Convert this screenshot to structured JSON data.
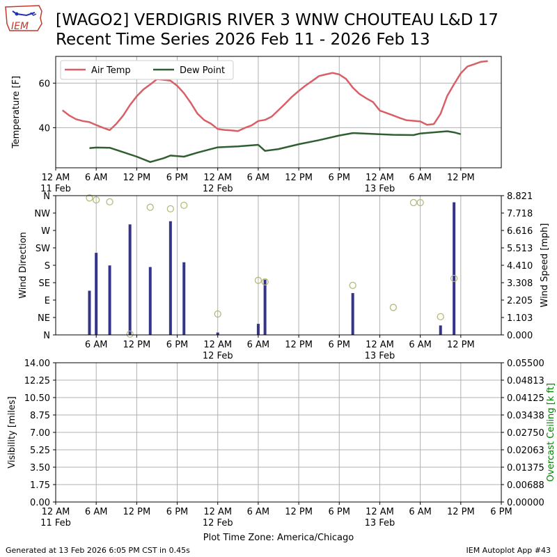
{
  "header": {
    "title_line1": "[WAGO2] VERDIGRIS RIVER 3 WNW CHOUTEAU L&D 17",
    "title_line2": "Recent Time Series 2026 Feb 11 - 2026 Feb 13",
    "logo_text": "IEM"
  },
  "footer": {
    "generated": "Generated at 13 Feb 2026 6:05 PM CST in 0.45s",
    "app": "IEM Autoplot App #43"
  },
  "colors": {
    "air_temp": "#d95f66",
    "dew_point": "#2f5f30",
    "wind_speed_bar": "#34348a",
    "wind_direction_marker": "#b5b97a",
    "ceiling_axis_label": "#008000",
    "grid": "#b0b0b0"
  },
  "chart_data": [
    {
      "type": "line",
      "name": "temperature-panel",
      "ylabel": "Temperature [F]",
      "xlim_hours": [
        0,
        66
      ],
      "ylim": [
        22,
        72
      ],
      "yticks": [
        40,
        60
      ],
      "xticks": [
        {
          "h": 0,
          "label": "12 AM",
          "sub": "11 Feb"
        },
        {
          "h": 6,
          "label": "6 AM",
          "sub": ""
        },
        {
          "h": 12,
          "label": "12 PM",
          "sub": ""
        },
        {
          "h": 18,
          "label": "6 PM",
          "sub": ""
        },
        {
          "h": 24,
          "label": "12 AM",
          "sub": "12 Feb"
        },
        {
          "h": 30,
          "label": "6 AM",
          "sub": ""
        },
        {
          "h": 36,
          "label": "12 PM",
          "sub": ""
        },
        {
          "h": 42,
          "label": "6 PM",
          "sub": ""
        },
        {
          "h": 48,
          "label": "12 AM",
          "sub": "13 Feb"
        },
        {
          "h": 54,
          "label": "6 AM",
          "sub": ""
        },
        {
          "h": 60,
          "label": "12 PM",
          "sub": ""
        }
      ],
      "grid": true,
      "legend": "upper-left",
      "series": [
        {
          "name": "Air Temp",
          "points": [
            [
              1,
              47.8
            ],
            [
              2,
              45.5
            ],
            [
              3,
              43.8
            ],
            [
              4,
              43.0
            ],
            [
              5,
              42.5
            ],
            [
              6,
              41.2
            ],
            [
              7,
              40.0
            ],
            [
              8,
              38.9
            ],
            [
              9,
              41.8
            ],
            [
              10,
              45.5
            ],
            [
              11,
              50.2
            ],
            [
              12,
              54.1
            ],
            [
              13,
              57.2
            ],
            [
              14,
              59.4
            ],
            [
              15,
              61.8
            ],
            [
              16,
              61.5
            ],
            [
              17,
              61.1
            ],
            [
              18,
              58.8
            ],
            [
              19,
              55.5
            ],
            [
              20,
              51.2
            ],
            [
              21,
              46.3
            ],
            [
              22,
              43.4
            ],
            [
              23,
              41.8
            ],
            [
              24,
              39.4
            ],
            [
              25,
              39.0
            ],
            [
              26,
              38.8
            ],
            [
              27,
              38.5
            ],
            [
              28,
              39.9
            ],
            [
              29,
              41.0
            ],
            [
              30,
              43.0
            ],
            [
              31,
              43.5
            ],
            [
              32,
              45.0
            ],
            [
              33,
              47.9
            ],
            [
              34,
              50.8
            ],
            [
              35,
              53.9
            ],
            [
              36,
              56.5
            ],
            [
              37,
              58.9
            ],
            [
              38,
              61.0
            ],
            [
              39,
              63.2
            ],
            [
              40,
              63.9
            ],
            [
              41,
              64.6
            ],
            [
              42,
              63.9
            ],
            [
              43,
              61.9
            ],
            [
              44,
              58.0
            ],
            [
              45,
              55.1
            ],
            [
              46,
              53.2
            ],
            [
              47,
              51.5
            ],
            [
              48,
              47.7
            ],
            [
              49,
              46.6
            ],
            [
              50,
              45.5
            ],
            [
              51,
              44.3
            ],
            [
              52,
              43.3
            ],
            [
              53,
              43.1
            ],
            [
              54,
              42.8
            ],
            [
              55,
              41.3
            ],
            [
              56,
              41.6
            ],
            [
              57,
              46.2
            ],
            [
              58,
              54.3
            ],
            [
              59,
              59.5
            ],
            [
              60,
              64.4
            ],
            [
              61,
              67.5
            ],
            [
              62,
              68.5
            ],
            [
              63,
              69.6
            ],
            [
              64,
              69.9
            ]
          ]
        },
        {
          "name": "Dew Point",
          "points": [
            [
              5,
              30.8
            ],
            [
              6,
              31.1
            ],
            [
              8,
              31.0
            ],
            [
              10,
              29.0
            ],
            [
              12,
              27.0
            ],
            [
              14,
              24.6
            ],
            [
              16,
              26.3
            ],
            [
              17,
              27.5
            ],
            [
              19,
              27.0
            ],
            [
              21,
              28.8
            ],
            [
              24,
              31.2
            ],
            [
              27,
              31.6
            ],
            [
              30,
              32.3
            ],
            [
              31,
              29.6
            ],
            [
              33,
              30.4
            ],
            [
              36,
              32.6
            ],
            [
              39,
              34.4
            ],
            [
              42,
              36.5
            ],
            [
              44,
              37.6
            ],
            [
              47,
              37.2
            ],
            [
              50,
              36.8
            ],
            [
              53,
              36.7
            ],
            [
              54,
              37.4
            ],
            [
              58,
              38.4
            ],
            [
              59,
              37.9
            ],
            [
              60,
              37.1
            ]
          ]
        }
      ]
    },
    {
      "type": "bar",
      "name": "wind-panel",
      "ylabel": "Wind Direction",
      "y2label": "Wind Speed [mph]",
      "xlim_hours": [
        0,
        66
      ],
      "direction_ylim": [
        0,
        360
      ],
      "speed_ylim": [
        0,
        8.821
      ],
      "direction_ticks": [
        "N",
        "NE",
        "E",
        "SE",
        "S",
        "SW",
        "W",
        "NW",
        "N"
      ],
      "speed_ticks": [
        "0.000",
        "1.103",
        "2.205",
        "3.308",
        "4.410",
        "5.513",
        "6.616",
        "7.718",
        "8.821"
      ],
      "xticks": [
        {
          "h": 6,
          "label": "6 AM",
          "sub": ""
        },
        {
          "h": 12,
          "label": "12 PM",
          "sub": ""
        },
        {
          "h": 18,
          "label": "6 PM",
          "sub": ""
        },
        {
          "h": 24,
          "label": "12 AM",
          "sub": "12 Feb"
        },
        {
          "h": 30,
          "label": "6 AM",
          "sub": ""
        },
        {
          "h": 36,
          "label": "12 PM",
          "sub": ""
        },
        {
          "h": 42,
          "label": "6 PM",
          "sub": ""
        },
        {
          "h": 48,
          "label": "12 AM",
          "sub": "13 Feb"
        },
        {
          "h": 54,
          "label": "6 AM",
          "sub": ""
        },
        {
          "h": 60,
          "label": "12 PM",
          "sub": ""
        }
      ],
      "grid": true,
      "wind_speed": [
        [
          5,
          2.8
        ],
        [
          6,
          5.2
        ],
        [
          8,
          4.4
        ],
        [
          11,
          7.0
        ],
        [
          14,
          4.3
        ],
        [
          17,
          7.2
        ],
        [
          19,
          4.6
        ],
        [
          24,
          0.15
        ],
        [
          30,
          0.7
        ],
        [
          31,
          3.5
        ],
        [
          44,
          2.65
        ],
        [
          57,
          0.6
        ],
        [
          59,
          8.4
        ]
      ],
      "wind_direction": [
        [
          5,
          354
        ],
        [
          6,
          349
        ],
        [
          8,
          344
        ],
        [
          11,
          2
        ],
        [
          14,
          330
        ],
        [
          17,
          326
        ],
        [
          19,
          335
        ],
        [
          24,
          54
        ],
        [
          30,
          141
        ],
        [
          31,
          137
        ],
        [
          44,
          128
        ],
        [
          50,
          71
        ],
        [
          53,
          342
        ],
        [
          54,
          342
        ],
        [
          57,
          47
        ],
        [
          59,
          146
        ]
      ]
    },
    {
      "type": "line",
      "name": "visibility-panel",
      "ylabel": "Visibility [miles]",
      "y2label": "Overcast Ceiling [k ft]",
      "xlim_hours": [
        0,
        66
      ],
      "ylim": [
        0,
        14
      ],
      "y2lim": [
        0,
        0.055
      ],
      "yticks": [
        "0.00",
        "1.75",
        "3.50",
        "5.25",
        "7.00",
        "8.75",
        "10.50",
        "12.25",
        "14.00"
      ],
      "y2ticks": [
        "0.00000",
        "0.00688",
        "0.01375",
        "0.02063",
        "0.02750",
        "0.03438",
        "0.04125",
        "0.04813",
        "0.05500"
      ],
      "xticks": [
        {
          "h": 0,
          "label": "12 AM",
          "sub": "11 Feb"
        },
        {
          "h": 6,
          "label": "6 AM",
          "sub": ""
        },
        {
          "h": 12,
          "label": "12 PM",
          "sub": ""
        },
        {
          "h": 18,
          "label": "6 PM",
          "sub": ""
        },
        {
          "h": 24,
          "label": "12 AM",
          "sub": "12 Feb"
        },
        {
          "h": 30,
          "label": "6 AM",
          "sub": ""
        },
        {
          "h": 36,
          "label": "12 PM",
          "sub": ""
        },
        {
          "h": 42,
          "label": "6 PM",
          "sub": ""
        },
        {
          "h": 48,
          "label": "12 AM",
          "sub": "13 Feb"
        },
        {
          "h": 54,
          "label": "6 AM",
          "sub": ""
        },
        {
          "h": 60,
          "label": "12 PM",
          "sub": ""
        },
        {
          "h": 66,
          "label": "6 PM",
          "sub": ""
        }
      ],
      "xlabel": "Plot Time Zone: America/Chicago",
      "grid": true,
      "series": []
    }
  ]
}
